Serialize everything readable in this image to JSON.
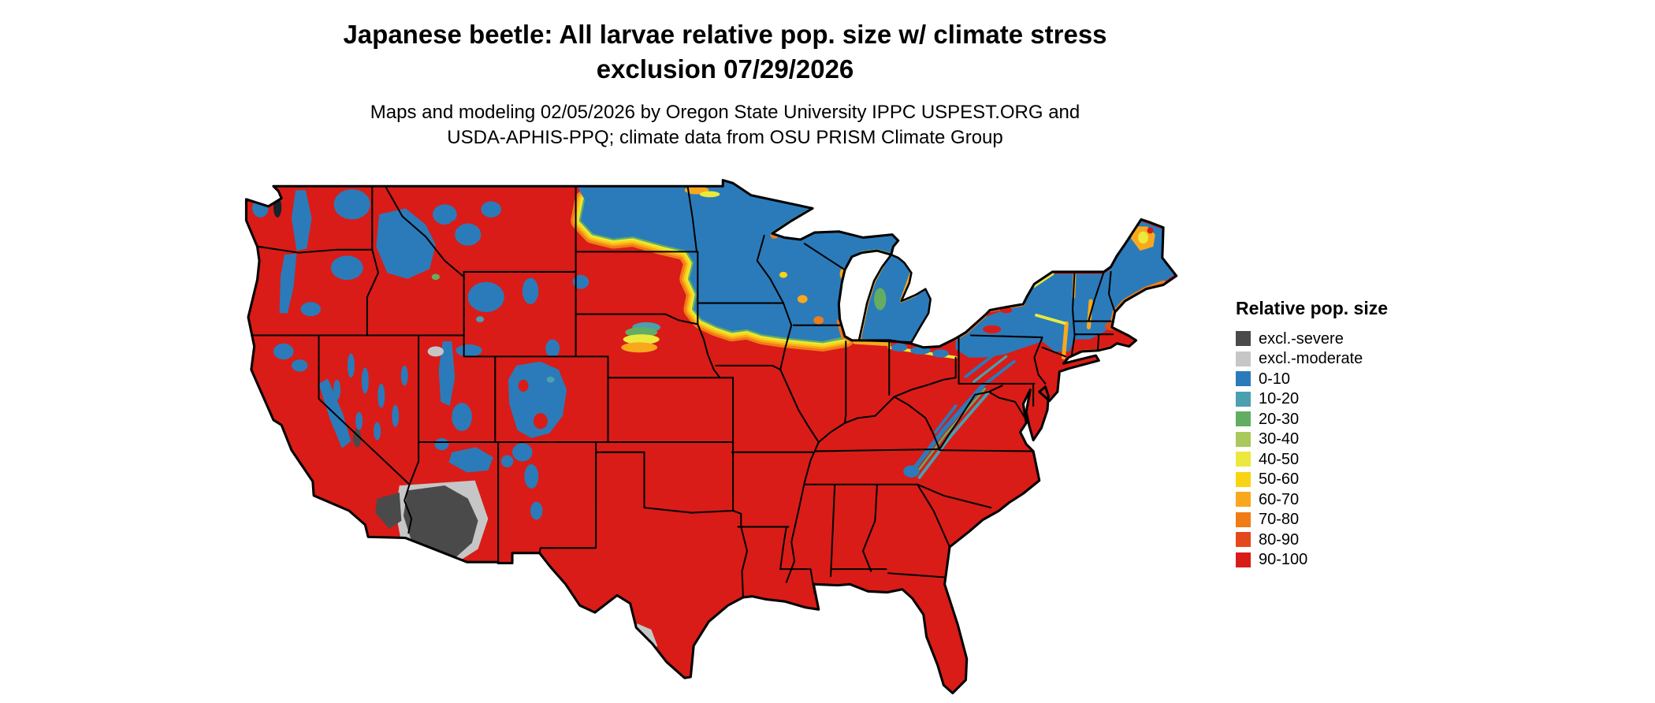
{
  "title": {
    "line1": "Japanese beetle: All larvae relative pop. size w/ climate stress",
    "line2": "exclusion 07/29/2026"
  },
  "subtitle": {
    "line1": "Maps and modeling 02/05/2026 by Oregon State University IPPC USPEST.ORG and",
    "line2": "USDA-APHIS-PPQ; climate data from OSU PRISM Climate Group"
  },
  "legend": {
    "title": "Relative pop. size",
    "items": [
      {
        "id": "excl-severe",
        "label": "excl.-severe",
        "color": "#4a4a4a"
      },
      {
        "id": "excl-moderate",
        "label": "excl.-moderate",
        "color": "#c6c6c6"
      },
      {
        "id": "0-10",
        "label": "0-10",
        "color": "#2b7bba"
      },
      {
        "id": "10-20",
        "label": "10-20",
        "color": "#4aa0b0"
      },
      {
        "id": "20-30",
        "label": "20-30",
        "color": "#63ad62"
      },
      {
        "id": "30-40",
        "label": "30-40",
        "color": "#a9c95c"
      },
      {
        "id": "40-50",
        "label": "40-50",
        "color": "#ebe93d"
      },
      {
        "id": "50-60",
        "label": "50-60",
        "color": "#f9d414"
      },
      {
        "id": "60-70",
        "label": "60-70",
        "color": "#f9a81d"
      },
      {
        "id": "70-80",
        "label": "70-80",
        "color": "#f07c17"
      },
      {
        "id": "80-90",
        "label": "80-90",
        "color": "#e4491b"
      },
      {
        "id": "90-100",
        "label": "90-100",
        "color": "#d91c17"
      }
    ]
  },
  "map": {
    "outline_color": "#000000",
    "water_color": "#15232c",
    "background_color": "#ffffff"
  }
}
